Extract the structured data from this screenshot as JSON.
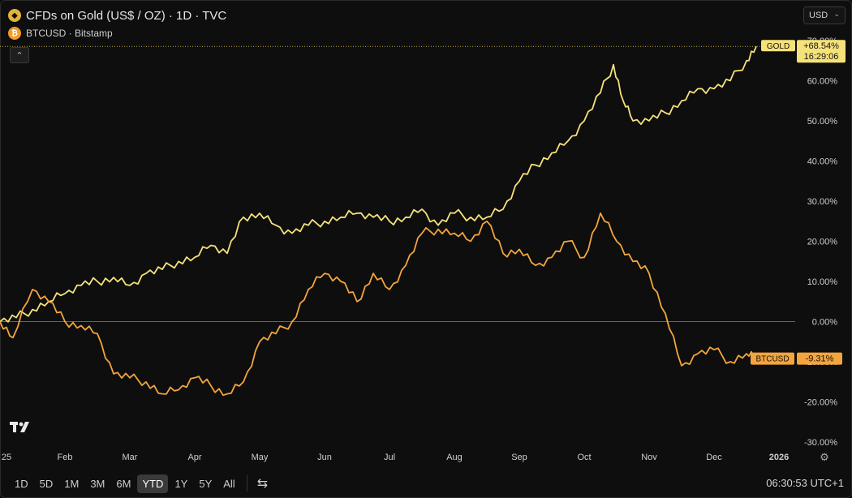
{
  "legend": {
    "title": "CFDs on Gold (US$ / OZ) · 1D · TVC",
    "subtitle": "BTCUSD · Bitstamp"
  },
  "toolbar": {
    "currency": "USD",
    "ranges": [
      "1D",
      "5D",
      "1M",
      "3M",
      "6M",
      "YTD",
      "1Y",
      "5Y",
      "All"
    ],
    "active_range": "YTD"
  },
  "clock": "06:30:53 UTC+1",
  "colors": {
    "gold": "#f5e27a",
    "btc": "#f4a53d",
    "background": "#0e0e0e"
  },
  "chart_data": {
    "type": "line",
    "x_labels": [
      "25",
      "Feb",
      "Mar",
      "Apr",
      "May",
      "Jun",
      "Jul",
      "Aug",
      "Sep",
      "Oct",
      "Nov",
      "Dec",
      "2026"
    ],
    "y_ticks": [
      "70.00%",
      "60.00%",
      "50.00%",
      "40.00%",
      "30.00%",
      "20.00%",
      "10.00%",
      "0.00%",
      "-10.00%",
      "-20.00%",
      "-30.00%"
    ],
    "ylim": [
      -30,
      70
    ],
    "xlim": [
      0,
      12
    ],
    "series": [
      {
        "name": "GOLD",
        "label": "GOLD",
        "last_value": "+68.54%",
        "time_left": "16:29:06",
        "x": [
          0,
          0.25,
          0.5,
          0.75,
          1.0,
          1.25,
          1.5,
          1.75,
          2.0,
          2.25,
          2.5,
          2.75,
          3.0,
          3.25,
          3.5,
          3.75,
          4.0,
          4.25,
          4.5,
          4.75,
          5.0,
          5.25,
          5.5,
          5.75,
          6.0,
          6.25,
          6.5,
          6.75,
          7.0,
          7.25,
          7.5,
          7.75,
          8.0,
          8.25,
          8.5,
          8.75,
          9.0,
          9.25,
          9.45,
          9.6,
          9.75,
          10.0,
          10.25,
          10.5,
          10.75,
          11.0,
          11.25,
          11.5,
          11.65
        ],
        "y": [
          0,
          1,
          3,
          5,
          7,
          9,
          10,
          11,
          9,
          12,
          13,
          15,
          16,
          19,
          17,
          26,
          27,
          24,
          22,
          24,
          25,
          26,
          27,
          26,
          25,
          26,
          28,
          24,
          27,
          26,
          26,
          28,
          35,
          39,
          42,
          45,
          50,
          57,
          64,
          55,
          50,
          50,
          52,
          55,
          58,
          58,
          60,
          65,
          68.54
        ]
      },
      {
        "name": "BTCUSD",
        "label": "BTCUSD",
        "last_value": "-9.31%",
        "x": [
          0,
          0.2,
          0.5,
          0.75,
          1.0,
          1.25,
          1.5,
          1.75,
          2.0,
          2.25,
          2.5,
          2.75,
          3.0,
          3.25,
          3.5,
          3.75,
          4.0,
          4.25,
          4.5,
          4.75,
          5.0,
          5.25,
          5.5,
          5.75,
          6.0,
          6.25,
          6.5,
          6.75,
          7.0,
          7.25,
          7.5,
          7.75,
          8.0,
          8.25,
          8.5,
          8.75,
          9.0,
          9.25,
          9.5,
          9.75,
          10.0,
          10.25,
          10.5,
          10.75,
          11.0,
          11.25,
          11.5,
          11.65
        ],
        "y": [
          0,
          -4,
          8,
          5,
          0,
          -1,
          -3,
          -13,
          -14,
          -15,
          -18,
          -17,
          -14,
          -16,
          -18,
          -15,
          -5,
          -3,
          0,
          8,
          12,
          10,
          5,
          12,
          8,
          14,
          22,
          23,
          22,
          20,
          25,
          17,
          18,
          14,
          16,
          20,
          16,
          27,
          20,
          15,
          12,
          2,
          -11,
          -8,
          -7,
          -10,
          -8,
          -9.31
        ]
      }
    ],
    "grid": false,
    "legend": "top-left"
  }
}
